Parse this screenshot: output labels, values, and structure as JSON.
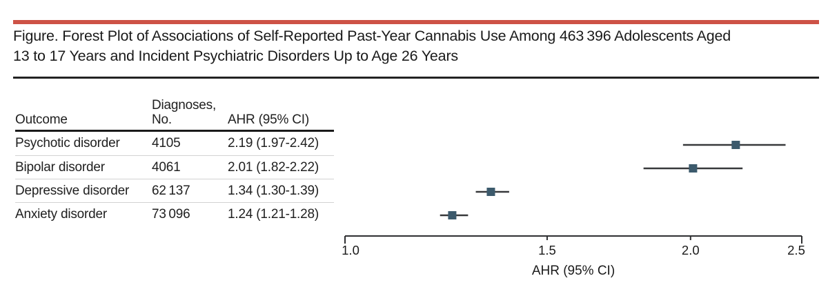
{
  "figure": {
    "title_line1": "Figure. Forest Plot of Associations of Self-Reported Past-Year Cannabis Use Among 463 396 Adolescents Aged",
    "title_line2": "13 to 17 Years and Incident Psychiatric Disorders Up to Age 26 Years"
  },
  "table": {
    "headers": {
      "outcome": "Outcome",
      "diagnoses_line1": "Diagnoses,",
      "diagnoses_line2": "No.",
      "ahr": "AHR (95% CI)"
    },
    "rows": [
      {
        "outcome": "Psychotic disorder",
        "diagnoses": "4105",
        "ahr_ci": "2.19 (1.97-2.42)"
      },
      {
        "outcome": "Bipolar disorder",
        "diagnoses": "4061",
        "ahr_ci": "2.01 (1.82-2.22)"
      },
      {
        "outcome": "Depressive disorder",
        "diagnoses": "62 137",
        "ahr_ci": "1.34 (1.30-1.39)"
      },
      {
        "outcome": "Anxiety disorder",
        "diagnoses": "73 096",
        "ahr_ci": "1.24 (1.21-1.28)"
      }
    ]
  },
  "chart_data": {
    "type": "scatter",
    "variant": "forest-plot",
    "xscale": "log",
    "xlabel": "AHR (95% CI)",
    "xlim": [
      1.0,
      2.5
    ],
    "xticks": [
      1.0,
      1.5,
      2.0,
      2.5
    ],
    "xtick_labels": [
      "1.0",
      "1.5",
      "2.0",
      "2.5"
    ],
    "grid": false,
    "legend": null,
    "points": [
      {
        "label": "Psychotic disorder",
        "ahr": 2.19,
        "ci_low": 1.97,
        "ci_high": 2.42
      },
      {
        "label": "Bipolar disorder",
        "ahr": 2.01,
        "ci_low": 1.82,
        "ci_high": 2.22
      },
      {
        "label": "Depressive disorder",
        "ahr": 1.34,
        "ci_low": 1.3,
        "ci_high": 1.39
      },
      {
        "label": "Anxiety disorder",
        "ahr": 1.24,
        "ci_low": 1.21,
        "ci_high": 1.28
      }
    ]
  },
  "colors": {
    "accent_bar": "#cd5246",
    "marker": "#3c5a6c",
    "ci_line": "#37383a",
    "axis": "#2e2f31",
    "text": "#1a1a1a",
    "rule_dark": "#1a1a1a",
    "row_separator": "#d2d2d2"
  }
}
